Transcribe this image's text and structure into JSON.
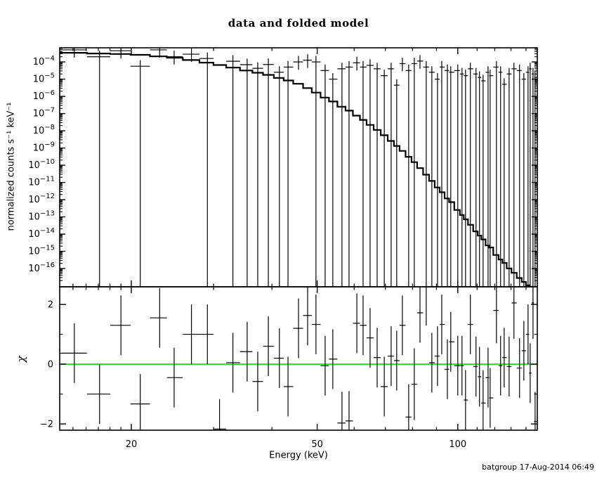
{
  "footer": {
    "timestamp": "batgroup 17-Aug-2014 06:49"
  },
  "colors": {
    "background": "#ffffff",
    "foreground": "#000000",
    "zero_line": "#00DD00"
  },
  "chart_data": {
    "type": "line",
    "title": "data and folded model",
    "xlabel": "Energy (keV)",
    "x_axis": {
      "scale": "log",
      "min": 14.05,
      "max": 148.0,
      "major_ticks": [
        20,
        50,
        100
      ],
      "minor_ticks": [
        15,
        16,
        17,
        18,
        19,
        30,
        40,
        60,
        70,
        80,
        90,
        110,
        120,
        130,
        140
      ]
    },
    "top_panel": {
      "ylabel": "normalized counts s⁻¹ keV⁻¹",
      "yscale": "log",
      "y_tick_exponents": [
        -4,
        -5,
        -6,
        -7,
        -8,
        -9,
        -10,
        -11,
        -12,
        -13,
        -14,
        -15,
        -16
      ],
      "y_range_exponent": [
        -17.06,
        -3.18
      ],
      "upper_whisker_decades": 0.35,
      "short_lower_whisker_decades": 0.45
    },
    "bottom_panel": {
      "ylabel": "χ",
      "y_ticks_major": [
        -2,
        0,
        2
      ],
      "y_ticks_minor": [
        -1,
        1
      ],
      "y_range": [
        -2.21,
        2.59
      ],
      "zero_line_value": 0
    },
    "series": [
      {
        "name": "data",
        "panel": "top",
        "type": "points_with_errors",
        "value_field": "d"
      },
      {
        "name": "folded_model",
        "panel": "top",
        "type": "step_histogram",
        "value_field": "m"
      },
      {
        "name": "residuals",
        "panel": "bottom",
        "type": "points_with_errors",
        "value_field": "c"
      }
    ],
    "bins_legend": "e=energy keV, d=data log10 value (null=not plotted), s=lower errorbar style f|s|n, m=model log10 value, c=chi residual, ce=chi error",
    "bins": [
      {
        "e": 15.1,
        "d": -3.3,
        "s": "s",
        "m": -3.47,
        "c": 0.37,
        "ce": 1.0
      },
      {
        "e": 17.1,
        "d": -3.7,
        "s": "f",
        "m": -3.51,
        "c": -1.0,
        "ce": 1.0
      },
      {
        "e": 19.0,
        "d": -3.35,
        "s": "s",
        "m": -3.54,
        "c": 1.3,
        "ce": 1.0
      },
      {
        "e": 20.9,
        "d": -4.25,
        "s": "f",
        "m": -3.59,
        "c": -1.33,
        "ce": 1.0
      },
      {
        "e": 23.0,
        "d": -3.3,
        "s": "s",
        "m": -3.68,
        "c": 1.55,
        "ce": 1.0
      },
      {
        "e": 24.7,
        "d": -3.7,
        "s": "s",
        "m": -3.76,
        "c": -0.45,
        "ce": 1.0
      },
      {
        "e": 26.9,
        "d": -3.55,
        "s": "s",
        "m": -3.89,
        "c": 1.0,
        "ce": 1.0
      },
      {
        "e": 29.1,
        "d": -3.8,
        "s": "f",
        "m": -4.04,
        "c": 1.0,
        "ce": 1.0
      },
      {
        "e": 30.9,
        "d": null,
        "s": "n",
        "m": -4.18,
        "c": -2.17,
        "ce": 1.0
      },
      {
        "e": 33.0,
        "d": -3.96,
        "s": "f",
        "m": -4.33,
        "c": 0.05,
        "ce": 1.0
      },
      {
        "e": 35.4,
        "d": -4.16,
        "s": "f",
        "m": -4.5,
        "c": 0.42,
        "ce": 1.0
      },
      {
        "e": 37.3,
        "d": -4.37,
        "s": "f",
        "m": -4.63,
        "c": -0.58,
        "ce": 1.0
      },
      {
        "e": 39.3,
        "d": -4.15,
        "s": "f",
        "m": -4.75,
        "c": 0.6,
        "ce": 1.0
      },
      {
        "e": 41.5,
        "d": -4.6,
        "s": "f",
        "m": -4.93,
        "c": 0.2,
        "ce": 1.0
      },
      {
        "e": 43.3,
        "d": -4.3,
        "s": "f",
        "m": -5.08,
        "c": -0.75,
        "ce": 1.0
      },
      {
        "e": 45.6,
        "d": -4.0,
        "s": "s",
        "m": -5.27,
        "c": 1.2,
        "ce": 1.0
      },
      {
        "e": 47.7,
        "d": -3.9,
        "s": "s",
        "m": -5.52,
        "c": 1.63,
        "ce": 1.0
      },
      {
        "e": 49.7,
        "d": -4.0,
        "s": "f",
        "m": -5.78,
        "c": 1.33,
        "ce": 1.0
      },
      {
        "e": 52.0,
        "d": -4.5,
        "s": "f",
        "m": -6.07,
        "c": -0.05,
        "ce": 1.0
      },
      {
        "e": 54.0,
        "d": -5.0,
        "s": "f",
        "m": -6.3,
        "c": 0.17,
        "ce": 1.0
      },
      {
        "e": 56.5,
        "d": -4.4,
        "s": "f",
        "m": -6.6,
        "c": -1.97,
        "ce": 1.05
      },
      {
        "e": 58.5,
        "d": -4.3,
        "s": "f",
        "m": -6.83,
        "c": -1.9,
        "ce": 1.0
      },
      {
        "e": 60.8,
        "d": -4.05,
        "s": "s",
        "m": -7.12,
        "c": 1.37,
        "ce": 1.0
      },
      {
        "e": 62.7,
        "d": -4.3,
        "s": "f",
        "m": -7.37,
        "c": 1.3,
        "ce": 1.0
      },
      {
        "e": 64.9,
        "d": -4.2,
        "s": "f",
        "m": -7.66,
        "c": 0.88,
        "ce": 1.0
      },
      {
        "e": 67.2,
        "d": -4.4,
        "s": "f",
        "m": -7.95,
        "c": 0.22,
        "ce": 1.0
      },
      {
        "e": 69.6,
        "d": -4.8,
        "s": "f",
        "m": -8.26,
        "c": -0.75,
        "ce": 1.0
      },
      {
        "e": 72.0,
        "d": -4.4,
        "s": "f",
        "m": -8.59,
        "c": 0.27,
        "ce": 1.0
      },
      {
        "e": 74.0,
        "d": -5.35,
        "s": "f",
        "m": -8.88,
        "c": 0.12,
        "ce": 1.0
      },
      {
        "e": 76.1,
        "d": -4.1,
        "s": "s",
        "m": -9.17,
        "c": 1.3,
        "ce": 1.0
      },
      {
        "e": 78.5,
        "d": -4.5,
        "s": "f",
        "m": -9.51,
        "c": -1.77,
        "ce": 1.1
      },
      {
        "e": 80.7,
        "d": -4.1,
        "s": "f",
        "m": -9.82,
        "c": -0.67,
        "ce": 1.2
      },
      {
        "e": 83.0,
        "d": -3.95,
        "s": "s",
        "m": -10.17,
        "c": 1.72,
        "ce": 1.0
      },
      {
        "e": 85.6,
        "d": -4.3,
        "s": "f",
        "m": -10.55,
        "c": 2.59,
        "ce": 1.3
      },
      {
        "e": 88.0,
        "d": -4.6,
        "s": "f",
        "m": -10.91,
        "c": 0.05,
        "ce": 1.0
      },
      {
        "e": 90.5,
        "d": -5.0,
        "s": "f",
        "m": -11.29,
        "c": 0.27,
        "ce": 1.0
      },
      {
        "e": 92.4,
        "d": -4.3,
        "s": "f",
        "m": -11.57,
        "c": 1.33,
        "ce": 1.0
      },
      {
        "e": 95.0,
        "d": -4.5,
        "s": "f",
        "m": -11.93,
        "c": -0.17,
        "ce": 1.0
      },
      {
        "e": 96.6,
        "d": -4.6,
        "s": "f",
        "m": -12.14,
        "c": 0.75,
        "ce": 1.0
      },
      {
        "e": 100.0,
        "d": -4.5,
        "s": "f",
        "m": -12.6,
        "c": -0.05,
        "ce": 1.0
      },
      {
        "e": 102.1,
        "d": -4.7,
        "s": "f",
        "m": -12.89,
        "c": -0.05,
        "ce": 1.0
      },
      {
        "e": 103.9,
        "d": -4.8,
        "s": "f",
        "m": -13.14,
        "c": -1.2,
        "ce": 1.0
      },
      {
        "e": 106.4,
        "d": -4.4,
        "s": "f",
        "m": -13.46,
        "c": 1.33,
        "ce": 1.0
      },
      {
        "e": 109.4,
        "d": -4.7,
        "s": "f",
        "m": -13.84,
        "c": -0.08,
        "ce": 1.0
      },
      {
        "e": 111.3,
        "d": -4.9,
        "s": "f",
        "m": -14.09,
        "c": -0.42,
        "ce": 1.0
      },
      {
        "e": 113.3,
        "d": -5.1,
        "s": "f",
        "m": -14.31,
        "c": -1.3,
        "ce": 1.1
      },
      {
        "e": 116.1,
        "d": -4.6,
        "s": "f",
        "m": -14.66,
        "c": -0.45,
        "ce": 1.0
      },
      {
        "e": 117.3,
        "d": -4.8,
        "s": "f",
        "m": -14.78,
        "c": -1.13,
        "ce": 1.0
      },
      {
        "e": 121.0,
        "d": -4.3,
        "s": "f",
        "m": -15.21,
        "c": 1.8,
        "ce": 1.1
      },
      {
        "e": 123.5,
        "d": -4.6,
        "s": "f",
        "m": -15.47,
        "c": -0.05,
        "ce": 1.0
      },
      {
        "e": 125.7,
        "d": -5.3,
        "s": "f",
        "m": -15.67,
        "c": 0.22,
        "ce": 1.0
      },
      {
        "e": 128.8,
        "d": -4.7,
        "s": "f",
        "m": -15.99,
        "c": -0.08,
        "ce": 1.0
      },
      {
        "e": 131.9,
        "d": -4.4,
        "s": "f",
        "m": -16.25,
        "c": 2.05,
        "ce": 1.2
      },
      {
        "e": 135.6,
        "d": -4.5,
        "s": "f",
        "m": -16.55,
        "c": -0.13,
        "ce": 1.0
      },
      {
        "e": 138.5,
        "d": -5.0,
        "s": "f",
        "m": -16.78,
        "c": 0.45,
        "ce": 1.0
      },
      {
        "e": 141.4,
        "d": -4.6,
        "s": "f",
        "m": -16.97,
        "c": 1.0,
        "ce": 1.0
      },
      {
        "e": 142.9,
        "d": -4.4,
        "s": "f",
        "m": -17.05,
        "c": -0.3,
        "ce": 1.0
      },
      {
        "e": 144.9,
        "d": -4.7,
        "s": "f",
        "m": -17.15,
        "c": 2.05,
        "ce": 1.2
      },
      {
        "e": 146.4,
        "d": -4.9,
        "s": "f",
        "m": -17.23,
        "c": -1.92,
        "ce": 1.0
      }
    ]
  }
}
